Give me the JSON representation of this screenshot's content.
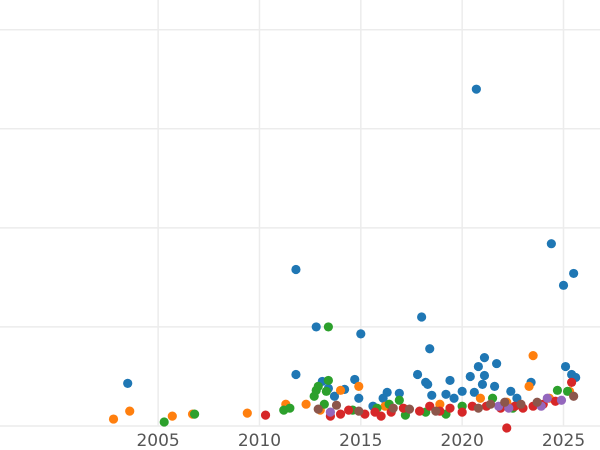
{
  "chart_data": {
    "type": "scatter",
    "title": "",
    "xlabel": "",
    "ylabel": "",
    "xlim": [
      1997.2,
      2026.8
    ],
    "ylim": [
      0,
      4.3
    ],
    "x_ticks": [
      2005,
      2010,
      2015,
      2020,
      2025
    ],
    "x_tick_labels": [
      "2005",
      "2010",
      "2015",
      "2020",
      "2025"
    ],
    "y_gridlines": [
      0,
      1,
      2,
      3,
      4
    ],
    "grid": true,
    "legend": "none",
    "series": [
      {
        "color": "#1f77b4",
        "points": [
          [
            2003.5,
            0.43
          ],
          [
            2011.8,
            0.52
          ],
          [
            2011.8,
            1.58
          ],
          [
            2012.8,
            1.0
          ],
          [
            2013.1,
            0.45
          ],
          [
            2013.4,
            0.38
          ],
          [
            2013.7,
            0.3
          ],
          [
            2014.2,
            0.37
          ],
          [
            2014.7,
            0.47
          ],
          [
            2014.9,
            0.28
          ],
          [
            2015.0,
            0.93
          ],
          [
            2015.6,
            0.2
          ],
          [
            2016.1,
            0.28
          ],
          [
            2016.3,
            0.34
          ],
          [
            2016.9,
            0.33
          ],
          [
            2017.8,
            0.52
          ],
          [
            2018.0,
            1.1
          ],
          [
            2018.2,
            0.44
          ],
          [
            2018.3,
            0.42
          ],
          [
            2018.4,
            0.78
          ],
          [
            2018.5,
            0.31
          ],
          [
            2019.2,
            0.32
          ],
          [
            2019.4,
            0.46
          ],
          [
            2019.6,
            0.28
          ],
          [
            2020.0,
            0.35
          ],
          [
            2020.4,
            0.5
          ],
          [
            2020.6,
            0.34
          ],
          [
            2020.7,
            3.4
          ],
          [
            2020.8,
            0.6
          ],
          [
            2021.0,
            0.42
          ],
          [
            2021.1,
            0.51
          ],
          [
            2021.1,
            0.69
          ],
          [
            2021.6,
            0.4
          ],
          [
            2021.7,
            0.63
          ],
          [
            2022.4,
            0.35
          ],
          [
            2022.7,
            0.28
          ],
          [
            2023.4,
            0.44
          ],
          [
            2024.4,
            1.84
          ],
          [
            2025.0,
            1.42
          ],
          [
            2025.1,
            0.6
          ],
          [
            2025.4,
            0.52
          ],
          [
            2025.5,
            1.54
          ],
          [
            2025.6,
            0.49
          ]
        ]
      },
      {
        "color": "#ff7f0e",
        "points": [
          [
            2002.8,
            0.07
          ],
          [
            2003.6,
            0.15
          ],
          [
            2005.7,
            0.1
          ],
          [
            2006.7,
            0.12
          ],
          [
            2009.4,
            0.13
          ],
          [
            2011.3,
            0.22
          ],
          [
            2012.3,
            0.22
          ],
          [
            2013.0,
            0.16
          ],
          [
            2014.0,
            0.36
          ],
          [
            2014.9,
            0.4
          ],
          [
            2016.2,
            0.2
          ],
          [
            2018.9,
            0.22
          ],
          [
            2020.9,
            0.28
          ],
          [
            2022.2,
            0.24
          ],
          [
            2023.3,
            0.4
          ],
          [
            2023.5,
            0.71
          ],
          [
            2024.3,
            0.28
          ],
          [
            2025.3,
            0.35
          ]
        ]
      },
      {
        "color": "#2ca02c",
        "points": [
          [
            2005.3,
            0.04
          ],
          [
            2006.8,
            0.12
          ],
          [
            2011.2,
            0.16
          ],
          [
            2011.5,
            0.18
          ],
          [
            2012.7,
            0.3
          ],
          [
            2012.8,
            0.36
          ],
          [
            2012.9,
            0.4
          ],
          [
            2013.2,
            0.22
          ],
          [
            2013.3,
            0.35
          ],
          [
            2013.4,
            0.46
          ],
          [
            2013.4,
            1.0
          ],
          [
            2014.6,
            0.16
          ],
          [
            2015.8,
            0.18
          ],
          [
            2016.4,
            0.22
          ],
          [
            2016.9,
            0.26
          ],
          [
            2017.2,
            0.11
          ],
          [
            2018.2,
            0.14
          ],
          [
            2019.2,
            0.12
          ],
          [
            2020.0,
            0.2
          ],
          [
            2021.5,
            0.28
          ],
          [
            2022.5,
            0.18
          ],
          [
            2024.7,
            0.36
          ],
          [
            2025.2,
            0.35
          ]
        ]
      },
      {
        "color": "#d62728",
        "points": [
          [
            2010.3,
            0.11
          ],
          [
            2013.5,
            0.1
          ],
          [
            2014.0,
            0.12
          ],
          [
            2014.4,
            0.16
          ],
          [
            2015.2,
            0.12
          ],
          [
            2015.7,
            0.14
          ],
          [
            2016.0,
            0.1
          ],
          [
            2016.5,
            0.14
          ],
          [
            2017.1,
            0.18
          ],
          [
            2017.9,
            0.15
          ],
          [
            2018.4,
            0.2
          ],
          [
            2018.9,
            0.15
          ],
          [
            2019.4,
            0.18
          ],
          [
            2020.0,
            0.14
          ],
          [
            2020.5,
            0.2
          ],
          [
            2021.2,
            0.2
          ],
          [
            2021.9,
            0.18
          ],
          [
            2022.2,
            -0.02
          ],
          [
            2022.6,
            0.2
          ],
          [
            2023.0,
            0.18
          ],
          [
            2023.5,
            0.2
          ],
          [
            2024.0,
            0.22
          ],
          [
            2024.6,
            0.25
          ],
          [
            2025.4,
            0.44
          ]
        ]
      },
      {
        "color": "#9467bd",
        "points": [
          [
            2013.5,
            0.14
          ],
          [
            2021.8,
            0.2
          ],
          [
            2022.3,
            0.18
          ],
          [
            2023.9,
            0.2
          ],
          [
            2024.2,
            0.28
          ],
          [
            2024.9,
            0.26
          ]
        ]
      },
      {
        "color": "#8c564b",
        "points": [
          [
            2012.9,
            0.17
          ],
          [
            2013.8,
            0.21
          ],
          [
            2014.9,
            0.15
          ],
          [
            2016.6,
            0.18
          ],
          [
            2017.4,
            0.17
          ],
          [
            2018.7,
            0.15
          ],
          [
            2020.8,
            0.18
          ],
          [
            2021.4,
            0.22
          ],
          [
            2022.1,
            0.24
          ],
          [
            2022.9,
            0.22
          ],
          [
            2023.7,
            0.24
          ],
          [
            2025.5,
            0.3
          ]
        ]
      }
    ]
  }
}
